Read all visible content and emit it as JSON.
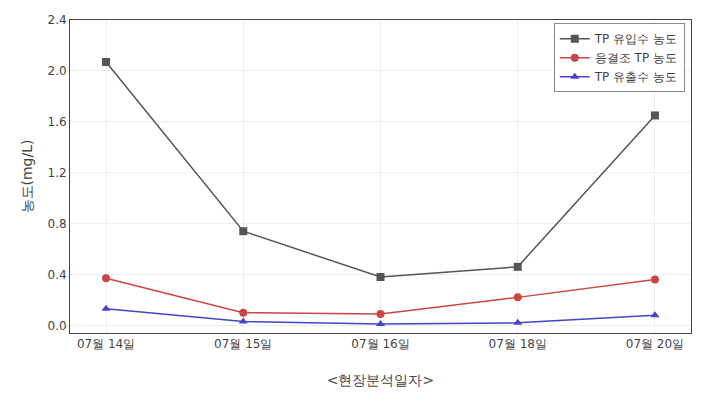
{
  "chart_data": {
    "type": "line",
    "xlabel": "<현장분석일자>",
    "ylabel": "농도(mg/L)",
    "categories": [
      "07월 14일",
      "07월 15일",
      "07월 16일",
      "07월 18일",
      "07월 20일"
    ],
    "series": [
      {
        "name": "TP 유입수 농도",
        "color": "#555555",
        "marker": "square",
        "values": [
          2.07,
          0.74,
          0.38,
          0.46,
          1.65
        ]
      },
      {
        "name": "응결조 TP 농도",
        "color": "#cc4444",
        "marker": "circle",
        "values": [
          0.37,
          0.1,
          0.09,
          0.22,
          0.36
        ]
      },
      {
        "name": "TP 유출수 농도",
        "color": "#4444cc",
        "marker": "triangle",
        "values": [
          0.13,
          0.03,
          0.01,
          0.02,
          0.08
        ]
      }
    ],
    "ylim": [
      -0.06,
      2.4
    ],
    "yticks": [
      {
        "value": 0,
        "label": "0.0"
      },
      0.4,
      0.8,
      1.2,
      1.6,
      {
        "value": 2,
        "label": "2.0"
      },
      2.4
    ],
    "grid": true,
    "legend": "upper right"
  }
}
